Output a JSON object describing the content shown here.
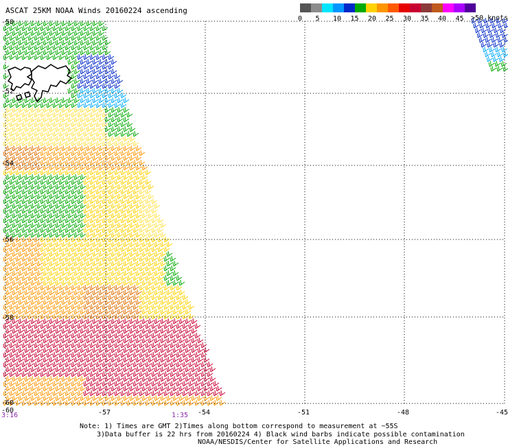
{
  "title": "ASCAT 25KM NOAA Winds 20160224 ascending",
  "legend": {
    "bins": [
      {
        "color": "#555555"
      },
      {
        "color": "#8c8c8c"
      },
      {
        "color": "#00e5ff"
      },
      {
        "color": "#0096ff"
      },
      {
        "color": "#0028c8"
      },
      {
        "color": "#00aa00"
      },
      {
        "color": "#ffd200"
      },
      {
        "color": "#ff9600"
      },
      {
        "color": "#ff5a00"
      },
      {
        "color": "#e60000"
      },
      {
        "color": "#c80032"
      },
      {
        "color": "#8b3a3a"
      },
      {
        "color": "#be5a1e"
      },
      {
        "color": "#ff00ff"
      },
      {
        "color": "#aa00ff"
      },
      {
        "color": "#50009a"
      }
    ],
    "tick_labels": [
      "0",
      "5",
      "10",
      "15",
      "20",
      "25",
      "30",
      "35",
      "40",
      "45"
    ],
    "units_label": ">50 knots"
  },
  "axes": {
    "lat_labels": [
      "-50",
      "-52",
      "-54",
      "-56",
      "-58",
      "-60"
    ],
    "lon_labels": [
      "-60",
      "-57",
      "-54",
      "-51",
      "-48",
      "-45"
    ],
    "gridlines": "dotted"
  },
  "time_labels": [
    {
      "text": "3:16",
      "color": "#8b2aa8"
    },
    {
      "text": "1:35",
      "color": "#8b2aa8"
    }
  ],
  "notes": {
    "line1": "Note: 1) Times are GMT 2)Times along bottom correspond to measurement at ~55S",
    "line2": "3)Data buffer is 22 hrs from 20160224 4) Black wind barbs indicate possible contamination",
    "line3": "NOAA/NESDIS/Center for Satellite Applications and Research"
  },
  "map_features": {
    "coastline": "Falkland Islands",
    "swath": "wind barbs colored by speed"
  }
}
